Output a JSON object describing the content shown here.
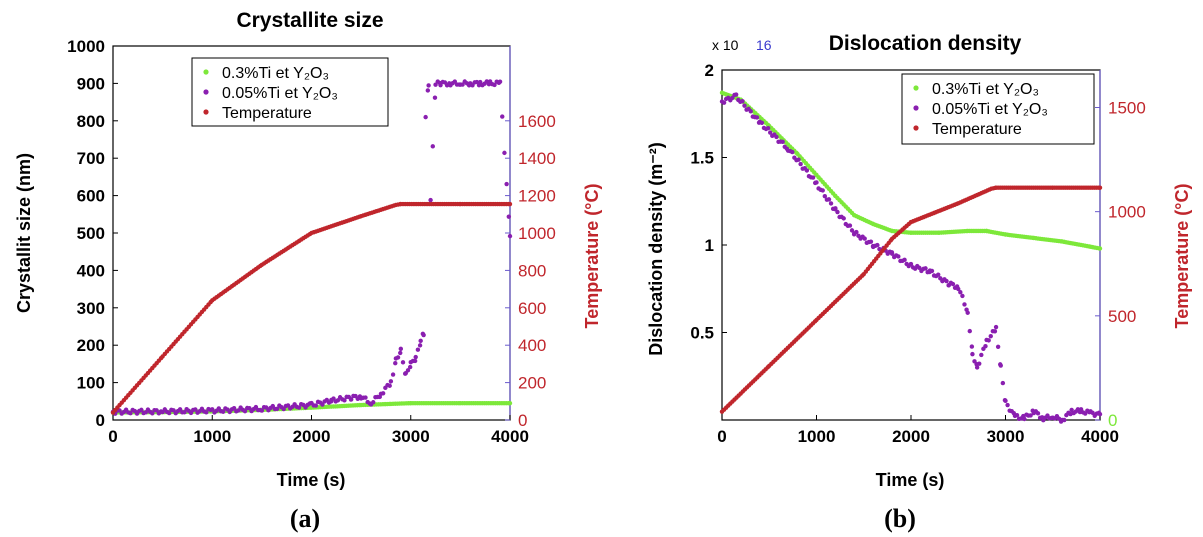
{
  "chart_data": [
    {
      "type": "scatter",
      "title": "Crystallite size",
      "panel_label": "(a)",
      "xlabel": "Time (s)",
      "ylabel": "Crystallit size (nm)",
      "y2label": "Temperature (°C)",
      "xlim": [
        0,
        4000
      ],
      "ylim": [
        0,
        1000
      ],
      "y2lim": [
        0,
        2000
      ],
      "xticks": [
        "0",
        "1000",
        "2000",
        "3000",
        "4000"
      ],
      "yticks": [
        "0",
        "100",
        "200",
        "300",
        "400",
        "500",
        "600",
        "700",
        "800",
        "900",
        "1000"
      ],
      "y2ticks": [
        "0",
        "200",
        "400",
        "600",
        "800",
        "1000",
        "1200",
        "1400",
        "1600"
      ],
      "legend": {
        "placement": "top-center"
      },
      "grid": false,
      "series": [
        {
          "name": "0.3%Ti et Y₂O₃",
          "color": "#7de83a",
          "axis": "left",
          "x": [
            0,
            500,
            1000,
            1500,
            2000,
            2500,
            2800,
            3000,
            3500,
            4000
          ],
          "y": [
            20,
            21,
            23,
            27,
            33,
            40,
            43,
            45,
            45,
            45
          ]
        },
        {
          "name": "0.05%Ti et Y₂O₃",
          "color": "#8a1fb0",
          "axis": "left",
          "x": [
            0,
            500,
            1000,
            1500,
            2000,
            2200,
            2400,
            2500,
            2600,
            2700,
            2800,
            2850,
            2900,
            2950,
            3000,
            3050,
            3100,
            3130,
            3150,
            3180,
            3200,
            3250,
            3300,
            3400,
            3500,
            3600,
            3700,
            3800,
            3900,
            4000
          ],
          "y": [
            22,
            23,
            25,
            30,
            40,
            52,
            60,
            63,
            45,
            70,
            100,
            160,
            185,
            120,
            150,
            165,
            210,
            232,
            810,
            900,
            590,
            900,
            900,
            900,
            900,
            900,
            900,
            900,
            900,
            490
          ]
        },
        {
          "name": "Temperature",
          "color": "#c0262c",
          "axis": "right",
          "x": [
            0,
            500,
            1000,
            1500,
            2000,
            2500,
            2850,
            2900,
            3500,
            4000
          ],
          "y": [
            40,
            340,
            640,
            830,
            1000,
            1090,
            1150,
            1155,
            1155,
            1155
          ]
        }
      ]
    },
    {
      "type": "scatter",
      "title": "Dislocation density",
      "panel_label": "(b)",
      "xlabel": "Time (s)",
      "ylabel": "Dislocation density (m⁻²)",
      "y2label": "Temperature (°C)",
      "y_scale_note": "x 10",
      "y_scale_exp": "16",
      "xlim": [
        0,
        4000
      ],
      "ylim": [
        0,
        2
      ],
      "y2lim": [
        0,
        1680
      ],
      "xticks": [
        "0",
        "1000",
        "2000",
        "3000",
        "4000"
      ],
      "yticks": [
        "0.5",
        "1",
        "1.5",
        "2"
      ],
      "y2ticks": [
        "0",
        "500",
        "1000",
        "1500"
      ],
      "legend": {
        "placement": "top-right"
      },
      "grid": false,
      "series": [
        {
          "name": "0.3%Ti et Y₂O₃",
          "color": "#7de83a",
          "axis": "left",
          "x": [
            0,
            200,
            500,
            800,
            1000,
            1200,
            1400,
            1600,
            1800,
            2000,
            2300,
            2600,
            2800,
            3000,
            3300,
            3600,
            3900,
            4000
          ],
          "y": [
            1.87,
            1.83,
            1.68,
            1.52,
            1.4,
            1.28,
            1.17,
            1.12,
            1.08,
            1.07,
            1.07,
            1.08,
            1.08,
            1.06,
            1.04,
            1.02,
            0.99,
            0.98
          ]
        },
        {
          "name": "0.05%Ti et Y₂O₃",
          "color": "#8a1fb0",
          "axis": "left",
          "x": [
            0,
            150,
            400,
            700,
            1000,
            1200,
            1400,
            1600,
            1800,
            2000,
            2200,
            2400,
            2500,
            2600,
            2650,
            2700,
            2800,
            2900,
            2950,
            3000,
            3100,
            3200,
            3300,
            3400,
            3500,
            3600,
            3700,
            3800,
            3900,
            4000
          ],
          "y": [
            1.82,
            1.85,
            1.7,
            1.55,
            1.35,
            1.2,
            1.07,
            1.0,
            0.95,
            0.88,
            0.85,
            0.78,
            0.76,
            0.62,
            0.38,
            0.3,
            0.45,
            0.52,
            0.3,
            0.1,
            0.02,
            0.01,
            0.05,
            0.01,
            0.02,
            0.0,
            0.05,
            0.05,
            0.04,
            0.03
          ]
        },
        {
          "name": "Temperature",
          "color": "#c0262c",
          "axis": "right",
          "x": [
            0,
            500,
            1000,
            1500,
            1800,
            2000,
            2500,
            2850,
            2900,
            3500,
            4000
          ],
          "y": [
            40,
            260,
            480,
            700,
            870,
            950,
            1040,
            1110,
            1115,
            1115,
            1115
          ]
        }
      ]
    }
  ]
}
